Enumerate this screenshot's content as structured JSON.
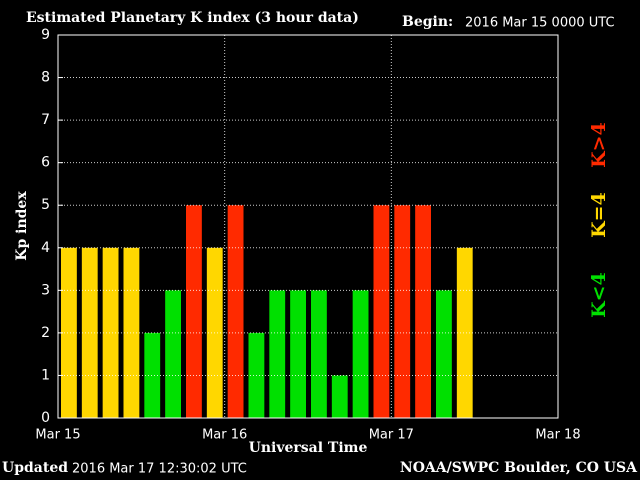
{
  "chart_data": {
    "type": "bar",
    "title": "Estimated Planetary K index (3 hour data)",
    "begin_label": "Begin:",
    "begin_value": "2016 Mar 15 0000 UTC",
    "y_label": "Kp index",
    "x_label": "Universal Time",
    "updated_label": "Updated",
    "updated_value": "2016 Mar 17 12:30:02 UTC",
    "credit": "NOAA/SWPC Boulder, CO USA",
    "xtick_labels": [
      "Mar 15",
      "Mar 16",
      "Mar 17",
      "Mar 18"
    ],
    "values": [
      4,
      4,
      4,
      4,
      2,
      3,
      5,
      4,
      5,
      2,
      3,
      3,
      3,
      1,
      3,
      5,
      5,
      5,
      3,
      4
    ],
    "colors": [
      "#ffd700",
      "#ffd700",
      "#ffd700",
      "#ffd700",
      "#00e000",
      "#00e000",
      "#ff2a00",
      "#ffd700",
      "#ff2a00",
      "#00e000",
      "#00e000",
      "#00e000",
      "#00e000",
      "#00e000",
      "#00e000",
      "#ff2a00",
      "#ff2a00",
      "#ff2a00",
      "#00e000",
      "#ffd700"
    ],
    "ylim": [
      0,
      9
    ],
    "yticks": [
      0,
      1,
      2,
      3,
      4,
      5,
      6,
      7,
      8,
      9
    ],
    "grid": true,
    "legend": [
      {
        "name": "K<4",
        "color": "#00e000"
      },
      {
        "name": "K=4",
        "color": "#ffd700"
      },
      {
        "name": "K>4",
        "color": "#ff2a00"
      }
    ]
  }
}
